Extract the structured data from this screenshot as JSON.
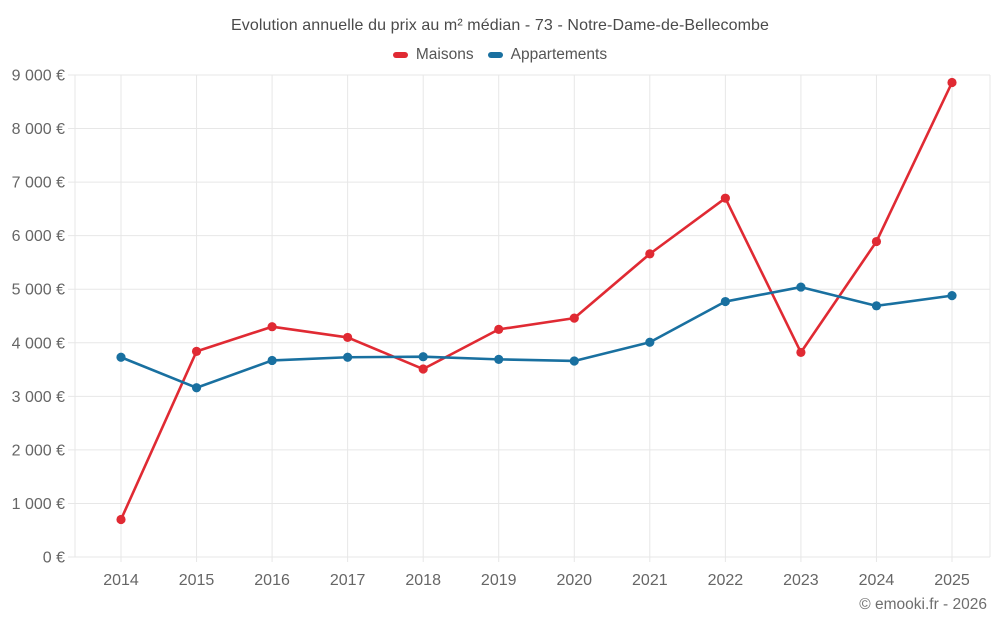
{
  "title": "Evolution annuelle du prix au m² médian - 73 - Notre-Dame-de-Bellecombe",
  "credit": "© emooki.fr - 2026",
  "legend": {
    "items": [
      {
        "label": "Maisons",
        "color": "#e02a33"
      },
      {
        "label": "Appartements",
        "color": "#1970a0"
      }
    ]
  },
  "chart_data": {
    "type": "line",
    "title": "Evolution annuelle du prix au m² médian - 73 - Notre-Dame-de-Bellecombe",
    "categories": [
      "2014",
      "2015",
      "2016",
      "2017",
      "2018",
      "2019",
      "2020",
      "2021",
      "2022",
      "2023",
      "2024",
      "2025"
    ],
    "series": [
      {
        "name": "Maisons",
        "color": "#e02a33",
        "values": [
          700,
          3840,
          4300,
          4100,
          3510,
          4250,
          4460,
          5660,
          6700,
          3820,
          5890,
          8860
        ]
      },
      {
        "name": "Appartements",
        "color": "#1970a0",
        "values": [
          3730,
          3160,
          3670,
          3730,
          3740,
          3690,
          3660,
          4010,
          4770,
          5040,
          4690,
          4880
        ]
      }
    ],
    "xlabel": "",
    "ylabel": "",
    "ylim": [
      0,
      9000
    ],
    "ytick_step": 1000,
    "ytick_suffix": " €",
    "grid": true,
    "legend_position": "top"
  },
  "colors": {
    "grid": "#e7e7e7",
    "axis_text": "#666666",
    "title_text": "#4a4a4a",
    "legend_text": "#555555",
    "credit_text": "#6e6e6e",
    "background": "#ffffff"
  }
}
